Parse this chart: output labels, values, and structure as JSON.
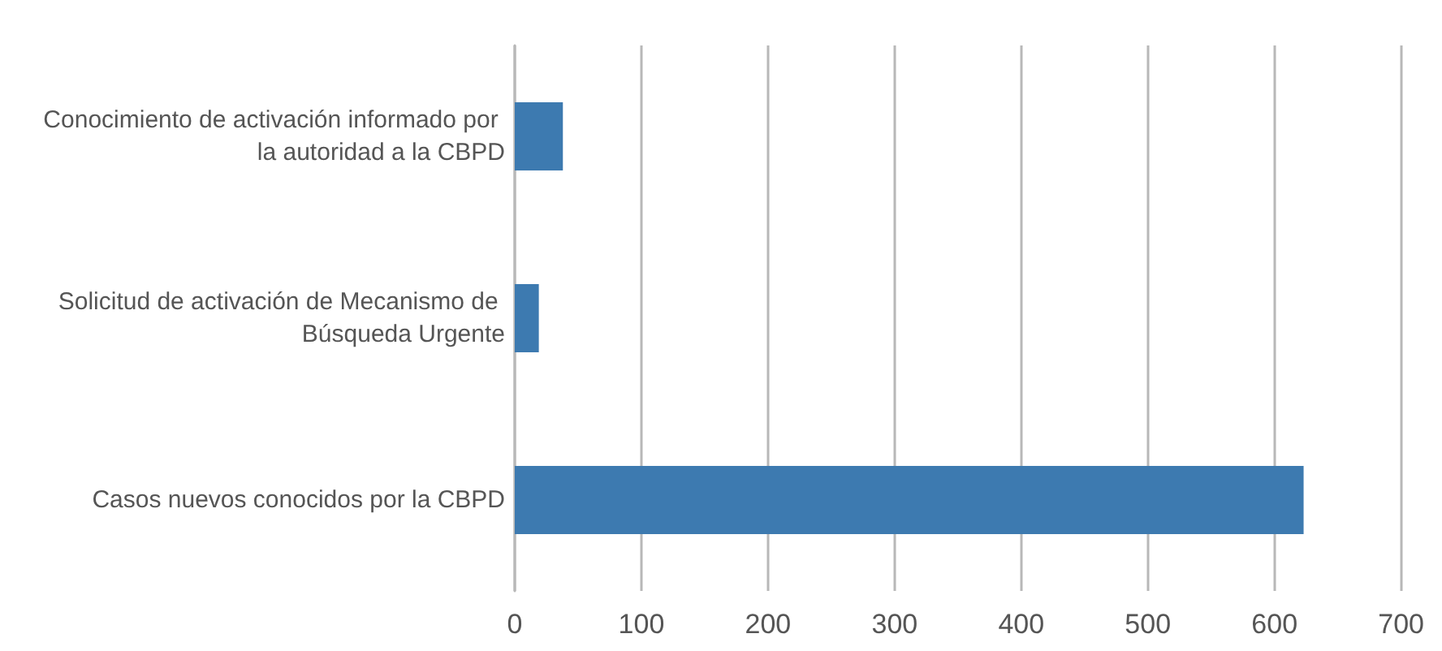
{
  "chart_data": {
    "type": "bar",
    "orientation": "horizontal",
    "categories": [
      "Conocimiento de activación informado por la autoridad a la CBPD",
      "Solicitud de activación de Mecanismo de Búsqueda Urgente",
      "Casos nuevos conocidos por la CBPD"
    ],
    "values": [
      38,
      19,
      623
    ],
    "color": "#3d7ab0",
    "xlim": [
      0,
      700
    ],
    "xticks": [
      0,
      100,
      200,
      300,
      400,
      500,
      600,
      700
    ],
    "grid": "x"
  }
}
